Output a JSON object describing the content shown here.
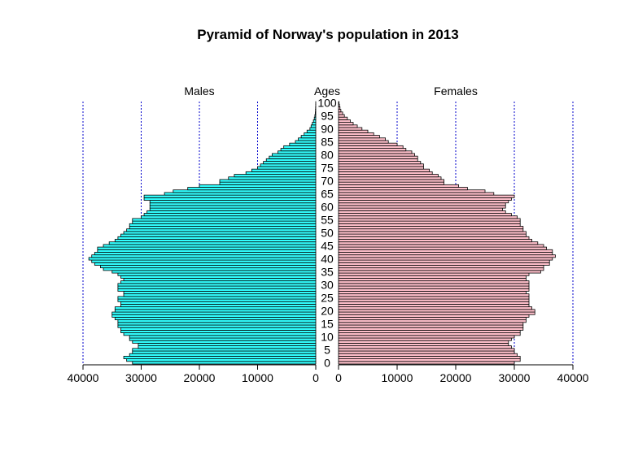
{
  "chart_data": {
    "type": "bar",
    "title": "Pyramid of Norway's population in 2013",
    "left_label": "Males",
    "center_label": "Ages",
    "right_label": "Females",
    "xlim": [
      0,
      40000
    ],
    "x_ticks": [
      40000,
      30000,
      20000,
      10000,
      0
    ],
    "x_tick_labels": [
      "40000",
      "30000",
      "20000",
      "10000",
      "0"
    ],
    "x_ticks_right": [
      0,
      10000,
      20000,
      30000,
      40000
    ],
    "x_tick_labels_right": [
      "0",
      "10000",
      "20000",
      "30000",
      "40000"
    ],
    "age_tick_labels": [
      "0",
      "5",
      "10",
      "15",
      "20",
      "25",
      "30",
      "35",
      "40",
      "45",
      "50",
      "55",
      "60",
      "65",
      "70",
      "75",
      "80",
      "85",
      "90",
      "95",
      "100"
    ],
    "grid": "vertical dotted lines at 10000, 20000, 30000, 40000 on each side",
    "colors": {
      "males": "#33ffff",
      "females": "#ffc0cb",
      "grid": "#0000cc",
      "outline": "#000000"
    },
    "series": [
      {
        "name": "Males",
        "ages": [
          0,
          1,
          2,
          3,
          4,
          5,
          6,
          7,
          8,
          9,
          10,
          11,
          12,
          13,
          14,
          15,
          16,
          17,
          18,
          19,
          20,
          21,
          22,
          23,
          24,
          25,
          26,
          27,
          28,
          29,
          30,
          31,
          32,
          33,
          34,
          35,
          36,
          37,
          38,
          39,
          40,
          41,
          42,
          43,
          44,
          45,
          46,
          47,
          48,
          49,
          50,
          51,
          52,
          53,
          54,
          55,
          56,
          57,
          58,
          59,
          60,
          61,
          62,
          63,
          64,
          65,
          66,
          67,
          68,
          69,
          70,
          71,
          72,
          73,
          74,
          75,
          76,
          77,
          78,
          79,
          80,
          81,
          82,
          83,
          84,
          85,
          86,
          87,
          88,
          89,
          90,
          91,
          92,
          93,
          94,
          95,
          96,
          97,
          98,
          99,
          100
        ],
        "values": [
          31500,
          32500,
          33000,
          32000,
          31500,
          31500,
          30500,
          30500,
          31500,
          32000,
          32000,
          33000,
          33500,
          33500,
          34000,
          34000,
          34000,
          34500,
          35000,
          35000,
          34500,
          34500,
          33500,
          33500,
          34000,
          34000,
          33000,
          33000,
          34000,
          34000,
          34000,
          33500,
          33000,
          33500,
          34000,
          35000,
          36500,
          37000,
          38000,
          38500,
          39000,
          38500,
          38000,
          37500,
          37500,
          36500,
          35500,
          34500,
          34000,
          33500,
          33000,
          32500,
          32000,
          32000,
          31500,
          31500,
          30000,
          29500,
          29000,
          28500,
          28500,
          28500,
          28500,
          29500,
          29500,
          26000,
          24500,
          22000,
          20000,
          16500,
          16500,
          15000,
          14000,
          12000,
          11000,
          10000,
          9500,
          9000,
          8500,
          8000,
          7500,
          6500,
          6000,
          5500,
          4500,
          3500,
          3000,
          2500,
          2000,
          1500,
          1000,
          800,
          600,
          400,
          250,
          150,
          80,
          50,
          30,
          10,
          5
        ]
      },
      {
        "name": "Females",
        "ages": [
          0,
          1,
          2,
          3,
          4,
          5,
          6,
          7,
          8,
          9,
          10,
          11,
          12,
          13,
          14,
          15,
          16,
          17,
          18,
          19,
          20,
          21,
          22,
          23,
          24,
          25,
          26,
          27,
          28,
          29,
          30,
          31,
          32,
          33,
          34,
          35,
          36,
          37,
          38,
          39,
          40,
          41,
          42,
          43,
          44,
          45,
          46,
          47,
          48,
          49,
          50,
          51,
          52,
          53,
          54,
          55,
          56,
          57,
          58,
          59,
          60,
          61,
          62,
          63,
          64,
          65,
          66,
          67,
          68,
          69,
          70,
          71,
          72,
          73,
          74,
          75,
          76,
          77,
          78,
          79,
          80,
          81,
          82,
          83,
          84,
          85,
          86,
          87,
          88,
          89,
          90,
          91,
          92,
          93,
          94,
          95,
          96,
          97,
          98,
          99,
          100
        ],
        "values": [
          30000,
          31000,
          31000,
          30500,
          30000,
          30000,
          29500,
          29000,
          29000,
          29500,
          30000,
          31000,
          31000,
          31500,
          31500,
          31500,
          32000,
          32000,
          32500,
          33500,
          33500,
          33000,
          32500,
          32500,
          32500,
          32500,
          32500,
          32000,
          32500,
          32500,
          32500,
          32500,
          32000,
          32000,
          32500,
          34500,
          35000,
          35000,
          36000,
          36000,
          36500,
          37000,
          36500,
          36500,
          35500,
          35000,
          34000,
          33000,
          32500,
          32000,
          32000,
          31500,
          31500,
          31000,
          31000,
          31000,
          30500,
          29500,
          28500,
          28000,
          28500,
          28500,
          29000,
          29500,
          30000,
          26500,
          25000,
          22000,
          20500,
          18000,
          18000,
          17500,
          17000,
          16000,
          15500,
          14500,
          14500,
          14000,
          13500,
          13500,
          13000,
          12500,
          11500,
          11000,
          10000,
          8500,
          8000,
          7000,
          6000,
          5000,
          4000,
          3200,
          2500,
          2000,
          1500,
          1000,
          700,
          400,
          250,
          150,
          80
        ]
      }
    ]
  }
}
